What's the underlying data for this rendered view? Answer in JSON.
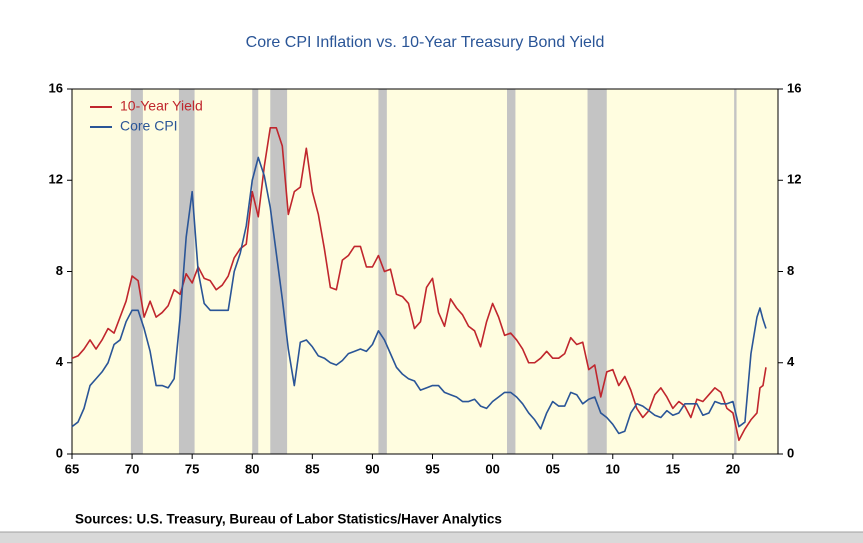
{
  "chart_data": {
    "type": "line",
    "title": "Core CPI Inflation vs. 10-Year Treasury Bond Yield",
    "source": "Sources:  U.S. Treasury, Bureau of Labor Statistics/Haver Analytics",
    "x": [
      1965,
      1965.5,
      1966,
      1966.5,
      1967,
      1967.5,
      1968,
      1968.5,
      1969,
      1969.5,
      1970,
      1970.5,
      1971,
      1971.5,
      1972,
      1972.5,
      1973,
      1973.5,
      1974,
      1974.5,
      1975,
      1975.5,
      1976,
      1976.5,
      1977,
      1977.5,
      1978,
      1978.5,
      1979,
      1979.5,
      1980,
      1980.5,
      1981,
      1981.5,
      1982,
      1982.5,
      1983,
      1983.5,
      1984,
      1984.5,
      1985,
      1985.5,
      1986,
      1986.5,
      1987,
      1987.5,
      1988,
      1988.5,
      1989,
      1989.5,
      1990,
      1990.5,
      1991,
      1991.5,
      1992,
      1992.5,
      1993,
      1993.5,
      1994,
      1994.5,
      1995,
      1995.5,
      1996,
      1996.5,
      1997,
      1997.5,
      1998,
      1998.5,
      1999,
      1999.5,
      2000,
      2000.5,
      2001,
      2001.5,
      2002,
      2002.5,
      2003,
      2003.5,
      2004,
      2004.5,
      2005,
      2005.5,
      2006,
      2006.5,
      2007,
      2007.5,
      2008,
      2008.5,
      2009,
      2009.5,
      2010,
      2010.5,
      2011,
      2011.5,
      2012,
      2012.5,
      2013,
      2013.5,
      2014,
      2014.5,
      2015,
      2015.5,
      2016,
      2016.5,
      2017,
      2017.5,
      2018,
      2018.5,
      2019,
      2019.5,
      2020,
      2020.5,
      2021,
      2021.5,
      2022,
      2022.25,
      2022.5,
      2022.75
    ],
    "series": [
      {
        "name": "10-Year Yield",
        "color": "#c0262d",
        "values": [
          4.2,
          4.3,
          4.6,
          5.0,
          4.6,
          5.0,
          5.5,
          5.3,
          6.0,
          6.7,
          7.8,
          7.6,
          6.0,
          6.7,
          6.0,
          6.2,
          6.5,
          7.2,
          7.0,
          7.9,
          7.5,
          8.2,
          7.7,
          7.6,
          7.2,
          7.4,
          7.8,
          8.6,
          9.0,
          9.2,
          11.5,
          10.4,
          12.6,
          14.3,
          14.3,
          13.5,
          10.5,
          11.5,
          11.7,
          13.4,
          11.5,
          10.5,
          9.0,
          7.3,
          7.2,
          8.5,
          8.7,
          9.1,
          9.1,
          8.2,
          8.2,
          8.7,
          8.0,
          8.1,
          7.0,
          6.9,
          6.6,
          5.5,
          5.8,
          7.3,
          7.7,
          6.2,
          5.6,
          6.8,
          6.4,
          6.1,
          5.6,
          5.4,
          4.7,
          5.8,
          6.6,
          6.0,
          5.2,
          5.3,
          5.0,
          4.6,
          4.0,
          4.0,
          4.2,
          4.5,
          4.2,
          4.2,
          4.4,
          5.1,
          4.8,
          4.9,
          3.7,
          3.9,
          2.5,
          3.6,
          3.7,
          3.0,
          3.4,
          2.8,
          2.0,
          1.6,
          1.9,
          2.6,
          2.9,
          2.5,
          2.0,
          2.3,
          2.1,
          1.6,
          2.4,
          2.3,
          2.6,
          2.9,
          2.7,
          2.0,
          1.8,
          0.6,
          1.1,
          1.5,
          1.8,
          2.9,
          3.0,
          3.8
        ]
      },
      {
        "name": "Core CPI",
        "color": "#2a5597",
        "values": [
          1.2,
          1.4,
          2.0,
          3.0,
          3.3,
          3.6,
          4.0,
          4.8,
          5.0,
          5.8,
          6.3,
          6.3,
          5.5,
          4.5,
          3.0,
          3.0,
          2.9,
          3.3,
          6.0,
          9.5,
          11.5,
          8.0,
          6.6,
          6.3,
          6.3,
          6.3,
          6.3,
          8.0,
          8.8,
          10.0,
          12.0,
          13.0,
          12.2,
          10.8,
          8.8,
          6.8,
          4.6,
          3.0,
          4.9,
          5.0,
          4.7,
          4.3,
          4.2,
          4.0,
          3.9,
          4.1,
          4.4,
          4.5,
          4.6,
          4.5,
          4.8,
          5.4,
          5.0,
          4.4,
          3.8,
          3.5,
          3.3,
          3.2,
          2.8,
          2.9,
          3.0,
          3.0,
          2.7,
          2.6,
          2.5,
          2.3,
          2.3,
          2.4,
          2.1,
          2.0,
          2.3,
          2.5,
          2.7,
          2.7,
          2.5,
          2.2,
          1.8,
          1.5,
          1.1,
          1.8,
          2.3,
          2.1,
          2.1,
          2.7,
          2.6,
          2.2,
          2.4,
          2.5,
          1.8,
          1.6,
          1.3,
          0.9,
          1.0,
          1.8,
          2.2,
          2.1,
          1.9,
          1.7,
          1.6,
          1.9,
          1.7,
          1.8,
          2.2,
          2.2,
          2.2,
          1.7,
          1.8,
          2.3,
          2.2,
          2.2,
          2.3,
          1.2,
          1.4,
          4.4,
          6.0,
          6.4,
          5.9,
          5.5
        ]
      }
    ],
    "shaded": [
      [
        1969.9,
        1970.9
      ],
      [
        1973.9,
        1975.2
      ],
      [
        1980.0,
        1980.5
      ],
      [
        1981.5,
        1982.9
      ],
      [
        1990.5,
        1991.2
      ],
      [
        2001.2,
        2001.9
      ],
      [
        2007.9,
        2009.5
      ],
      [
        2020.1,
        2020.3
      ]
    ],
    "shade_color": "#c4c4c4",
    "background": "#fffde0",
    "xlim": [
      1965,
      2023.75
    ],
    "xticks": [
      {
        "value": 1965,
        "label": "65"
      },
      {
        "value": 1970,
        "label": "70"
      },
      {
        "value": 1975,
        "label": "75"
      },
      {
        "value": 1980,
        "label": "80"
      },
      {
        "value": 1985,
        "label": "85"
      },
      {
        "value": 1990,
        "label": "90"
      },
      {
        "value": 1995,
        "label": "95"
      },
      {
        "value": 2000,
        "label": "00"
      },
      {
        "value": 2005,
        "label": "05"
      },
      {
        "value": 2010,
        "label": "10"
      },
      {
        "value": 2015,
        "label": "15"
      },
      {
        "value": 2020,
        "label": "20"
      }
    ],
    "ylim": [
      0,
      16
    ],
    "yticks": [
      0,
      4,
      8,
      12,
      16
    ],
    "y2lim": [
      0,
      16
    ],
    "y2ticks": [
      0,
      4,
      8,
      12,
      16
    ],
    "legend": "upper left"
  }
}
